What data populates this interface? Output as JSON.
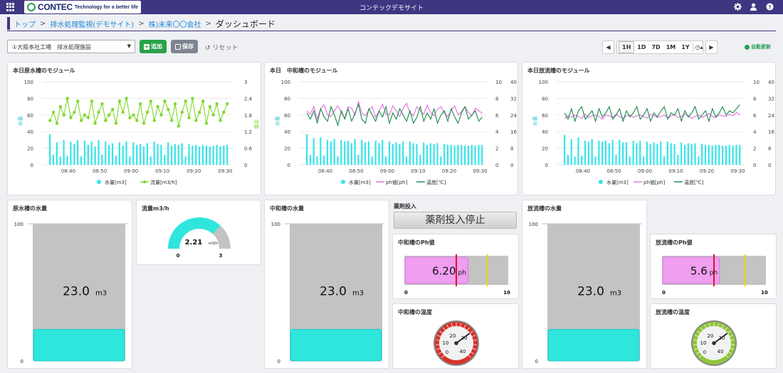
{
  "topbar": {
    "brand": "CONTEC",
    "tagline": "Technology for a better life",
    "title": "コンテックデモサイト"
  },
  "breadcrumb": {
    "home": "トップ",
    "system": "排水処理監視(デモサイト)",
    "company": "株)未来〇〇会社",
    "current": "ダッシュボード",
    "sep": ">"
  },
  "toolbar": {
    "site": "①大阪本社工場　排水処理施設",
    "add": "追加",
    "save": "保存",
    "reset": "リセット",
    "ranges": [
      "1H",
      "1D",
      "7D",
      "1M",
      "1Y"
    ],
    "active_range": "1H",
    "auto_update": "自動更新"
  },
  "colors": {
    "accent": "#3f3682",
    "bar": "#35e5ea",
    "flow": "#7fd92a",
    "ph": "#e46fe0",
    "temp": "#1a8c4a",
    "tank_fill": "#2ee6dc"
  },
  "charts": [
    {
      "title": "本日原水槽のモジュール",
      "ylabel": "水量",
      "y2label": "流量",
      "y_ticks": [
        "100",
        "80",
        "60",
        "40",
        "20",
        "0"
      ],
      "y2_ticks": [
        "3",
        "2.4",
        "1.8",
        "1.2",
        "0.6",
        "0"
      ],
      "x_ticks": [
        "08:40",
        "08:50",
        "09:00",
        "09:10",
        "09:20",
        "09:30"
      ],
      "legend": [
        {
          "label": "水量[m3]",
          "color": "#35e5ea",
          "kind": "dot"
        },
        {
          "label": "流量[m3/h]",
          "color": "#7fd92a",
          "kind": "line"
        }
      ]
    },
    {
      "title": "本日　中和槽のモジュール",
      "ylabel": "水量",
      "y_ticks": [
        "100",
        "80",
        "60",
        "40",
        "20",
        "0"
      ],
      "y2_ticks": [
        "10",
        "8",
        "6",
        "4",
        "2",
        "0"
      ],
      "y3_ticks": [
        "40",
        "32",
        "24",
        "16",
        "8",
        "0"
      ],
      "x_ticks": [
        "08:40",
        "08:50",
        "09:00",
        "09:10",
        "09:20",
        "09:30"
      ],
      "legend": [
        {
          "label": "水量[m3]",
          "color": "#35e5ea",
          "kind": "dot"
        },
        {
          "label": "ph値[ph]",
          "color": "#e46fe0",
          "kind": "line"
        },
        {
          "label": "温度[℃]",
          "color": "#1a8c4a",
          "kind": "line"
        }
      ]
    },
    {
      "title": "本日放流槽のモジュール",
      "ylabel": "水量",
      "y_ticks": [
        "100",
        "80",
        "60",
        "40",
        "20",
        "0"
      ],
      "y2_ticks": [
        "10",
        "8",
        "6",
        "4",
        "2",
        "0"
      ],
      "y3_ticks": [
        "40",
        "32",
        "24",
        "16",
        "8",
        "0"
      ],
      "x_ticks": [
        "08:40",
        "08:50",
        "09:00",
        "09:10",
        "09:20",
        "09:30"
      ],
      "legend": [
        {
          "label": "水量[m3]",
          "color": "#35e5ea",
          "kind": "dot"
        },
        {
          "label": "ph値[ph]",
          "color": "#e46fe0",
          "kind": "line"
        },
        {
          "label": "温度[℃]",
          "color": "#1a8c4a",
          "kind": "line"
        }
      ]
    }
  ],
  "chart_data": [
    {
      "type": "bar",
      "title": "本日原水槽のモジュール",
      "ylim": [
        0,
        100
      ],
      "y2lim": [
        0,
        3
      ],
      "series": [
        {
          "name": "水量[m3]",
          "values": [
            37,
            12,
            27,
            10,
            30,
            11,
            28,
            25,
            30,
            10,
            29,
            24,
            28,
            22,
            30,
            12,
            28,
            24,
            26,
            11,
            27,
            23,
            28,
            10,
            27,
            24,
            25,
            22,
            26,
            10,
            28,
            25,
            24,
            12,
            27,
            23,
            25,
            24,
            26,
            10,
            25,
            23,
            24,
            22,
            24,
            23,
            22,
            23,
            24,
            22,
            23,
            24
          ]
        },
        {
          "name": "流量[m3/h]",
          "values": [
            1.6,
            1.9,
            1.5,
            2.1,
            1.8,
            2.4,
            1.7,
            1.9,
            2.3,
            1.6,
            1.8,
            1.7,
            2.3,
            1.5,
            1.9,
            2.2,
            1.6,
            1.8,
            2.0,
            1.5,
            2.3,
            1.9,
            2.4,
            1.7,
            1.8,
            1.6,
            2.2,
            1.5,
            1.9,
            2.3,
            1.6,
            2.1,
            1.8,
            2.3,
            2.0,
            1.6,
            2.2,
            1.4,
            1.9,
            2.3,
            1.7,
            2.4,
            1.6,
            1.9,
            2.3,
            1.5,
            2.1,
            1.8,
            2.2,
            1.6,
            1.9,
            2.2
          ]
        }
      ]
    },
    {
      "type": "bar",
      "title": "本日　中和槽のモジュール",
      "ylim": [
        0,
        100
      ],
      "series": [
        {
          "name": "水量[m3]",
          "values": [
            37,
            12,
            32,
            10,
            33,
            11,
            30,
            28,
            31,
            10,
            30,
            28,
            29,
            26,
            31,
            12,
            30,
            27,
            28,
            10,
            29,
            26,
            30,
            10,
            28,
            25,
            27,
            25,
            28,
            10,
            28,
            26,
            25,
            12,
            27,
            24,
            26,
            25,
            26,
            10,
            25,
            24,
            24,
            23,
            24,
            24,
            23,
            23,
            24,
            23,
            24,
            24
          ]
        },
        {
          "name": "ph値[ph]",
          "values": [
            6.5,
            6.1,
            7.0,
            5.5,
            6.8,
            7.2,
            6.0,
            5.8,
            6.5,
            7.1,
            6.3,
            5.6,
            7.0,
            6.8,
            6.0,
            7.6,
            6.2,
            5.9,
            6.6,
            7.0,
            5.7,
            6.5,
            7.3,
            6.1,
            6.0,
            7.1,
            6.5,
            5.8,
            6.8,
            7.4,
            6.2,
            5.9,
            7.0,
            6.5,
            6.1,
            7.2,
            6.3,
            5.9,
            6.7,
            7.0,
            6.2,
            5.8,
            6.6,
            7.1,
            6.0,
            6.4,
            7.0,
            6.3,
            5.9,
            6.8,
            6.5,
            6.2
          ]
        },
        {
          "name": "温度[℃]",
          "values": [
            25,
            22,
            26,
            20,
            27,
            23,
            21,
            28,
            24,
            19,
            26,
            22,
            27,
            21,
            25,
            29,
            22,
            20,
            27,
            24,
            21,
            26,
            23,
            28,
            20,
            25,
            22,
            27,
            24,
            21,
            26,
            20,
            23,
            28,
            21,
            25,
            22,
            27,
            20,
            24,
            26,
            21,
            27,
            23,
            20,
            25,
            28,
            22,
            24,
            26,
            21,
            23
          ]
        }
      ]
    },
    {
      "type": "bar",
      "title": "本日放流槽のモジュール",
      "ylim": [
        0,
        100
      ],
      "series": [
        {
          "name": "水量[m3]",
          "values": [
            36,
            12,
            31,
            10,
            33,
            11,
            29,
            28,
            31,
            10,
            29,
            28,
            29,
            26,
            30,
            12,
            30,
            27,
            27,
            10,
            29,
            26,
            29,
            10,
            28,
            25,
            27,
            25,
            28,
            10,
            28,
            26,
            25,
            12,
            27,
            24,
            26,
            25,
            26,
            10,
            25,
            24,
            24,
            23,
            24,
            24,
            23,
            23,
            24,
            23,
            24,
            24
          ]
        },
        {
          "name": "ph値[ph]",
          "values": [
            5.6,
            5.9,
            5.7,
            6.0,
            5.8,
            5.6,
            6.1,
            5.7,
            5.9,
            6.0,
            5.8,
            5.5,
            6.0,
            5.9,
            5.7,
            6.1,
            5.8,
            5.6,
            5.9,
            6.0,
            5.7,
            5.9,
            6.0,
            5.8,
            5.6,
            6.1,
            5.9,
            5.7,
            5.8,
            6.0,
            5.6,
            5.9,
            6.0,
            5.7,
            5.8,
            6.1,
            5.9,
            5.6,
            5.8,
            6.0,
            5.7,
            5.9,
            6.2,
            5.8,
            5.7,
            6.0,
            5.9,
            5.8,
            6.1,
            5.9,
            6.3,
            6.0
          ]
        },
        {
          "name": "温度[℃]",
          "values": [
            25,
            22,
            27,
            21,
            26,
            28,
            22,
            24,
            26,
            21,
            27,
            23,
            25,
            28,
            22,
            24,
            27,
            21,
            26,
            23,
            25,
            28,
            22,
            24,
            27,
            21,
            25,
            23,
            26,
            28,
            22,
            25,
            24,
            27,
            21,
            26,
            23,
            25,
            28,
            22,
            24,
            26,
            21,
            27,
            23,
            25,
            28,
            24,
            26,
            25,
            27,
            29
          ]
        }
      ]
    }
  ],
  "tiles": {
    "raw_tank": {
      "title": "原水槽の水量",
      "max": "100",
      "min": "0",
      "value": "23.0",
      "unit": "m3",
      "level": 0.23
    },
    "flow": {
      "title": "流量m3/h",
      "value": "2.21",
      "unit": "m3/h",
      "min": "0",
      "max": "3",
      "level": 0.737
    },
    "neutral_tank": {
      "title": "中和槽の水量",
      "max": "100",
      "min": "0",
      "value": "23.0",
      "unit": "m3",
      "level": 0.23
    },
    "chem": {
      "title": "薬剤投入",
      "status": "薬剤投入停止"
    },
    "neutral_ph": {
      "title": "中和槽のPh値",
      "value": "6.20",
      "unit": "ph",
      "min": "0",
      "max": "10",
      "level": 0.62
    },
    "neutral_temp": {
      "title": "中和槽の温度",
      "ticks": [
        "0",
        "10",
        "20",
        "30",
        "40"
      ]
    },
    "discharge_tank": {
      "title": "放流槽の水量",
      "max": "100",
      "min": "0",
      "value": "23.0",
      "unit": "m3",
      "level": 0.23
    },
    "discharge_ph": {
      "title": "放流槽のPh値",
      "value": "5.6",
      "unit": "ph",
      "min": "0",
      "max": "10",
      "level": 0.56
    },
    "discharge_temp": {
      "title": "放流槽の温度",
      "ticks": [
        "0",
        "10",
        "20",
        "30",
        "40"
      ]
    }
  }
}
